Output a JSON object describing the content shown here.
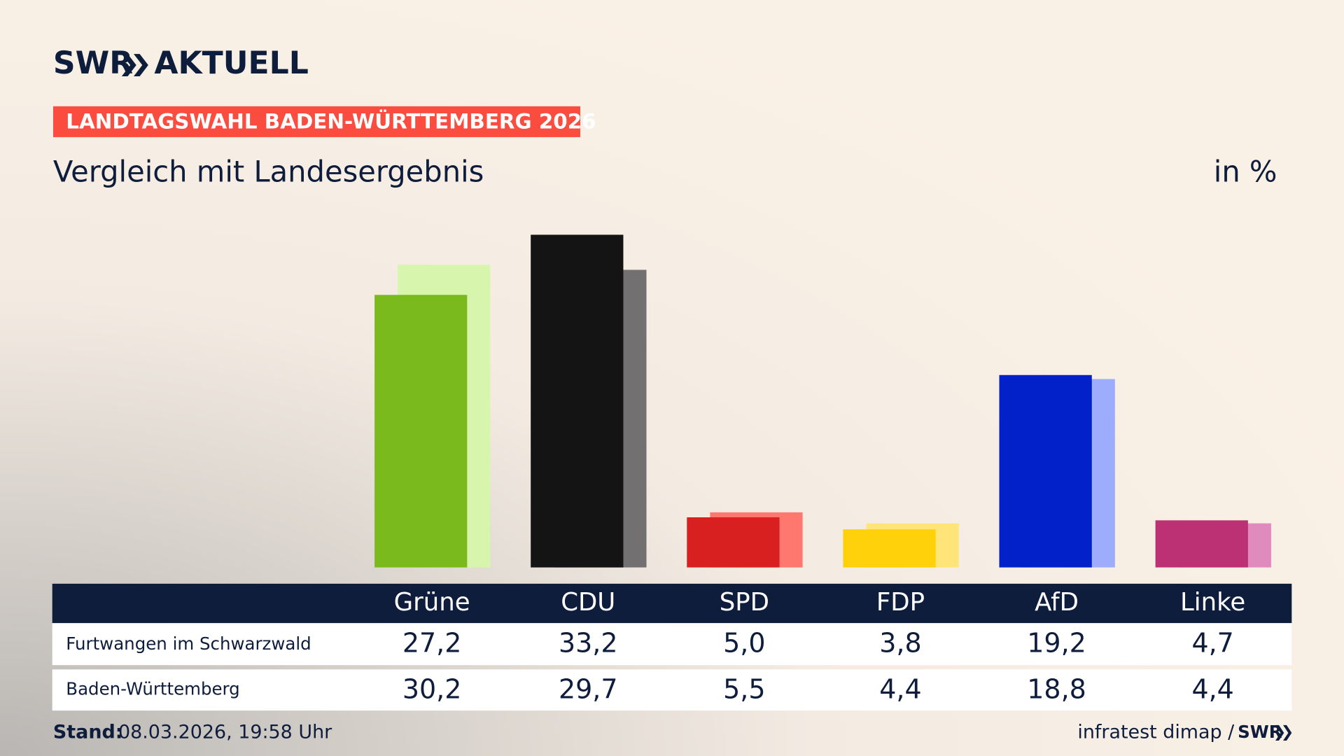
{
  "chart_data": {
    "type": "bar",
    "logo": "SWR",
    "logo_title": "AKTUELL",
    "badge": "LANDTAGSWAHL BADEN-WÜRTTEMBERG 2026",
    "title": "Vergleich mit Landesergebnis",
    "unit_label": "in %",
    "categories": [
      "Grüne",
      "CDU",
      "SPD",
      "FDP",
      "AfD",
      "Linke"
    ],
    "series": [
      {
        "name": "Furtwangen im Schwarzwald",
        "colors": [
          "#7aba1d",
          "#141414",
          "#d7201f",
          "#ffd10a",
          "#0221c8",
          "#bc3174"
        ],
        "values": [
          27.2,
          33.2,
          5.0,
          3.8,
          19.2,
          4.7
        ],
        "value_labels": [
          "27,2",
          "33,2",
          "5,0",
          "3,8",
          "19,2",
          "4,7"
        ]
      },
      {
        "name": "Baden-Württemberg",
        "colors": [
          "#d8f5ae",
          "#727070",
          "#ff7870",
          "#ffe47a",
          "#9eacfe",
          "#e08bbd"
        ],
        "values": [
          30.2,
          29.7,
          5.5,
          4.4,
          18.8,
          4.4
        ],
        "value_labels": [
          "30,2",
          "29,7",
          "5,5",
          "4,4",
          "18,8",
          "4,4"
        ]
      }
    ],
    "stand_label": "Stand:",
    "stand": "08.03.2026, 19:58 Uhr",
    "source": "infratest dimap /",
    "source_logo": "SWR"
  }
}
